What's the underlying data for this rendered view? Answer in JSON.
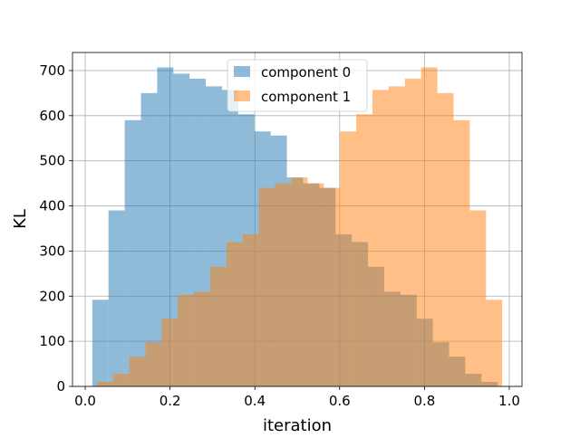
{
  "chart_data": {
    "type": "bar",
    "title": "",
    "xlabel": "iteration",
    "ylabel": "KL",
    "xlim": [
      -0.03,
      1.03
    ],
    "ylim": [
      0,
      740
    ],
    "xticks": [
      0.0,
      0.2,
      0.4,
      0.6,
      0.8,
      1.0
    ],
    "xtick_labels": [
      "0.0",
      "0.2",
      "0.4",
      "0.6",
      "0.8",
      "1.0"
    ],
    "yticks": [
      0,
      100,
      200,
      300,
      400,
      500,
      600,
      700
    ],
    "ytick_labels": [
      "0",
      "100",
      "200",
      "300",
      "400",
      "500",
      "600",
      "700"
    ],
    "grid": true,
    "legend_position": "top-center",
    "bin_edges": [
      0.0167,
      0.0549,
      0.0932,
      0.1314,
      0.1697,
      0.2079,
      0.2461,
      0.2844,
      0.3226,
      0.3609,
      0.3991,
      0.4373,
      0.4756,
      0.5138,
      0.5521,
      0.5903,
      0.6286,
      0.6668,
      0.705,
      0.7433,
      0.7815,
      0.8198,
      0.858,
      0.8962,
      0.9345,
      0.9727
    ],
    "series": [
      {
        "name": "component 0",
        "color": "#1f77b4",
        "alpha": 0.5,
        "bins": [
          {
            "left": 0.0167,
            "right": 0.0549,
            "value": 192
          },
          {
            "left": 0.0549,
            "right": 0.0932,
            "value": 390
          },
          {
            "left": 0.0932,
            "right": 0.1314,
            "value": 590
          },
          {
            "left": 0.1314,
            "right": 0.1697,
            "value": 650
          },
          {
            "left": 0.1697,
            "right": 0.2079,
            "value": 707
          },
          {
            "left": 0.2079,
            "right": 0.2461,
            "value": 693
          },
          {
            "left": 0.2461,
            "right": 0.2844,
            "value": 682
          },
          {
            "left": 0.2844,
            "right": 0.3226,
            "value": 665
          },
          {
            "left": 0.3226,
            "right": 0.3609,
            "value": 657
          },
          {
            "left": 0.3609,
            "right": 0.3991,
            "value": 603
          },
          {
            "left": 0.3991,
            "right": 0.4373,
            "value": 565
          },
          {
            "left": 0.4373,
            "right": 0.4756,
            "value": 556
          },
          {
            "left": 0.4756,
            "right": 0.5138,
            "value": 463
          },
          {
            "left": 0.5138,
            "right": 0.5521,
            "value": 450
          },
          {
            "left": 0.5521,
            "right": 0.5903,
            "value": 440
          },
          {
            "left": 0.5903,
            "right": 0.6286,
            "value": 337
          },
          {
            "left": 0.6286,
            "right": 0.6668,
            "value": 320
          },
          {
            "left": 0.6668,
            "right": 0.705,
            "value": 265
          },
          {
            "left": 0.705,
            "right": 0.7433,
            "value": 210
          },
          {
            "left": 0.7433,
            "right": 0.7815,
            "value": 203
          },
          {
            "left": 0.7815,
            "right": 0.8198,
            "value": 150
          },
          {
            "left": 0.8198,
            "right": 0.858,
            "value": 98
          },
          {
            "left": 0.858,
            "right": 0.8962,
            "value": 66
          },
          {
            "left": 0.8962,
            "right": 0.9345,
            "value": 28
          },
          {
            "left": 0.9345,
            "right": 0.9727,
            "value": 10
          }
        ]
      },
      {
        "name": "component 1",
        "color": "#ff7f0e",
        "alpha": 0.5,
        "bins": [
          {
            "left": 0.0273,
            "right": 0.0655,
            "value": 10
          },
          {
            "left": 0.0655,
            "right": 0.1038,
            "value": 28
          },
          {
            "left": 0.1038,
            "right": 0.142,
            "value": 66
          },
          {
            "left": 0.142,
            "right": 0.1802,
            "value": 98
          },
          {
            "left": 0.1802,
            "right": 0.2185,
            "value": 150
          },
          {
            "left": 0.2185,
            "right": 0.2567,
            "value": 203
          },
          {
            "left": 0.2567,
            "right": 0.295,
            "value": 210
          },
          {
            "left": 0.295,
            "right": 0.3332,
            "value": 265
          },
          {
            "left": 0.3332,
            "right": 0.3714,
            "value": 320
          },
          {
            "left": 0.3714,
            "right": 0.4097,
            "value": 337
          },
          {
            "left": 0.4097,
            "right": 0.4479,
            "value": 440
          },
          {
            "left": 0.4479,
            "right": 0.4862,
            "value": 450
          },
          {
            "left": 0.4862,
            "right": 0.5244,
            "value": 463
          },
          {
            "left": 0.5244,
            "right": 0.5627,
            "value": 450
          },
          {
            "left": 0.5627,
            "right": 0.6009,
            "value": 440
          },
          {
            "left": 0.6009,
            "right": 0.6391,
            "value": 565
          },
          {
            "left": 0.6391,
            "right": 0.6774,
            "value": 603
          },
          {
            "left": 0.6774,
            "right": 0.7156,
            "value": 657
          },
          {
            "left": 0.7156,
            "right": 0.7539,
            "value": 665
          },
          {
            "left": 0.7539,
            "right": 0.7921,
            "value": 682
          },
          {
            "left": 0.7921,
            "right": 0.8303,
            "value": 707
          },
          {
            "left": 0.8303,
            "right": 0.8686,
            "value": 650
          },
          {
            "left": 0.8686,
            "right": 0.9068,
            "value": 590
          },
          {
            "left": 0.9068,
            "right": 0.9451,
            "value": 390
          },
          {
            "left": 0.9451,
            "right": 0.9833,
            "value": 192
          }
        ]
      }
    ]
  }
}
